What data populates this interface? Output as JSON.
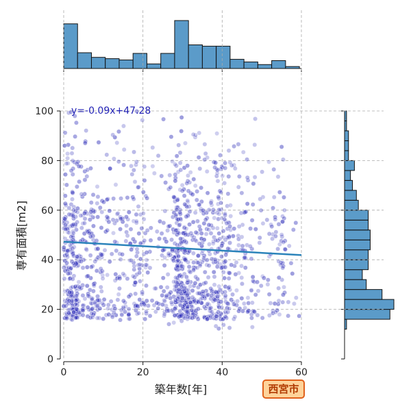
{
  "chart_data": {
    "type": "scatter",
    "xlabel": "築年数[年]",
    "ylabel": "専有面積[m2]",
    "xlim": [
      0,
      60
    ],
    "ylim": [
      0,
      100
    ],
    "x_ticks": [
      0,
      20,
      40,
      60
    ],
    "y_ticks": [
      0,
      20,
      40,
      60,
      80,
      100
    ],
    "grid": true,
    "regression": {
      "slope": -0.09,
      "intercept": 47.28,
      "label": "y=-0.09x+47.28"
    },
    "badge": "西宮市",
    "marginal_x_hist": {
      "bin_edges": [
        0,
        3.5,
        7,
        10.5,
        14,
        17.5,
        21,
        24.5,
        28,
        31.5,
        35,
        38.5,
        42,
        45.5,
        49,
        52.5,
        56,
        59.5
      ],
      "counts": [
        68,
        24,
        17,
        15,
        13,
        23,
        7,
        23,
        73,
        36,
        34,
        34,
        14,
        10,
        6,
        12,
        3
      ]
    },
    "marginal_y_hist": {
      "bin_edges": [
        12,
        16,
        20,
        24,
        28,
        32,
        36,
        40,
        44,
        48,
        52,
        56,
        60,
        64,
        68,
        72,
        76,
        80,
        84,
        88,
        92,
        96,
        100
      ],
      "counts": [
        1,
        23,
        25,
        19,
        11,
        9,
        12,
        12,
        13,
        13,
        12,
        12,
        7,
        6,
        4,
        3,
        5,
        2,
        2,
        2,
        1,
        1
      ]
    },
    "colors": {
      "points": "#2a2ab8",
      "line": "#2b83ba",
      "hist": "#5b9bc9",
      "badge_fill": "#ffd39a",
      "badge_border": "#e0601a"
    }
  }
}
